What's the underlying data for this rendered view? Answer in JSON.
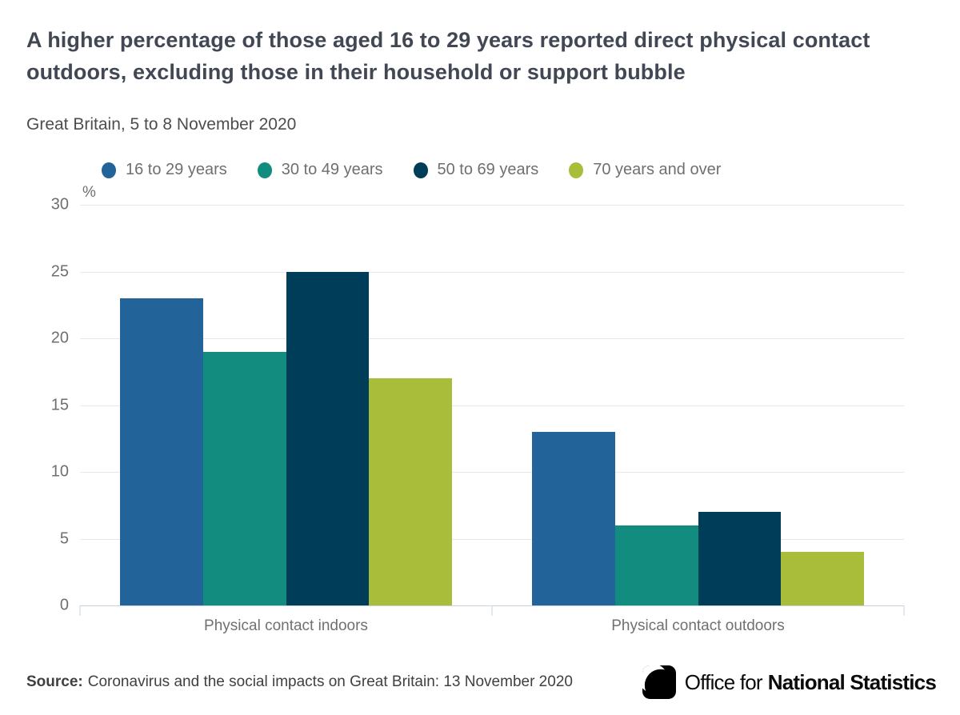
{
  "header": {
    "title": "A higher percentage of those aged 16 to 29 years reported direct physical contact outdoors, excluding those in their household or support bubble",
    "subtitle": "Great Britain, 5 to 8 November 2020"
  },
  "chart_data": {
    "type": "bar",
    "unit_label": "%",
    "categories": [
      "Physical contact indoors",
      "Physical contact outdoors"
    ],
    "series": [
      {
        "name": "16 to 29 years",
        "color": "#226399",
        "values": [
          23,
          13
        ]
      },
      {
        "name": "30 to 49 years",
        "color": "#118c7e",
        "values": [
          19,
          6
        ]
      },
      {
        "name": "50 to 69 years",
        "color": "#003d58",
        "values": [
          25,
          7
        ]
      },
      {
        "name": "70 years and over",
        "color": "#a9bd3a",
        "values": [
          17,
          4
        ]
      }
    ],
    "ylim": [
      0,
      30
    ],
    "yticks": [
      0,
      5,
      10,
      15,
      20,
      25,
      30
    ],
    "grid": "horizontal",
    "legend_position": "top"
  },
  "footer": {
    "source_label": "Source:",
    "source_text": "Coronavirus and the social impacts on Great Britain: 13 November 2020",
    "logo": {
      "text_regular": "Office for",
      "text_bold": "National Statistics"
    }
  }
}
